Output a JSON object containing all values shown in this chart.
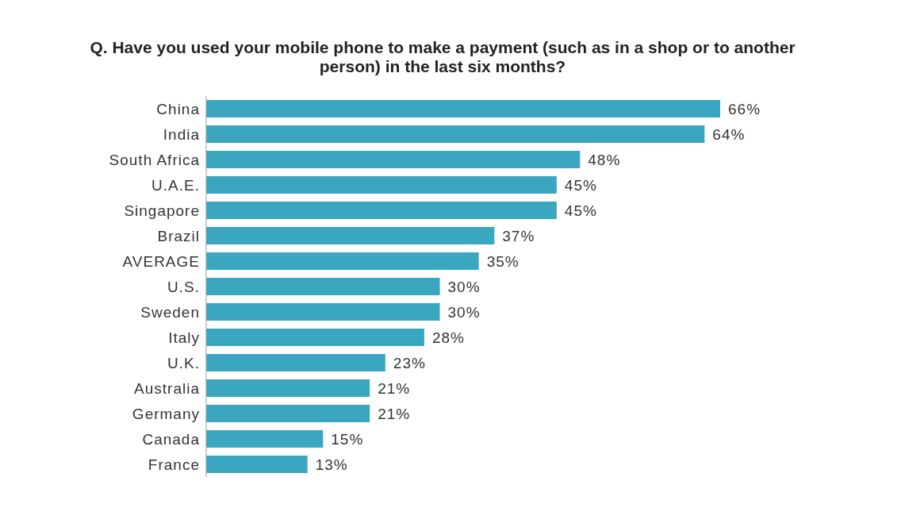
{
  "chart_data": {
    "type": "bar",
    "orientation": "horizontal",
    "title": "Q. Have you used your mobile phone to make a payment (such as in a shop or to another person) in the last six months?",
    "categories": [
      "China",
      "India",
      "South Africa",
      "U.A.E.",
      "Singapore",
      "Brazil",
      "AVERAGE",
      "U.S.",
      "Sweden",
      "Italy",
      "U.K.",
      "Australia",
      "Germany",
      "Canada",
      "France"
    ],
    "values": [
      66,
      64,
      48,
      45,
      45,
      37,
      35,
      30,
      30,
      28,
      23,
      21,
      21,
      15,
      13
    ],
    "value_labels": [
      "66%",
      "64%",
      "48%",
      "45%",
      "45%",
      "37%",
      "35%",
      "30%",
      "30%",
      "28%",
      "23%",
      "21%",
      "21%",
      "15%",
      "13%"
    ],
    "color": "#3aa6c0"
  }
}
